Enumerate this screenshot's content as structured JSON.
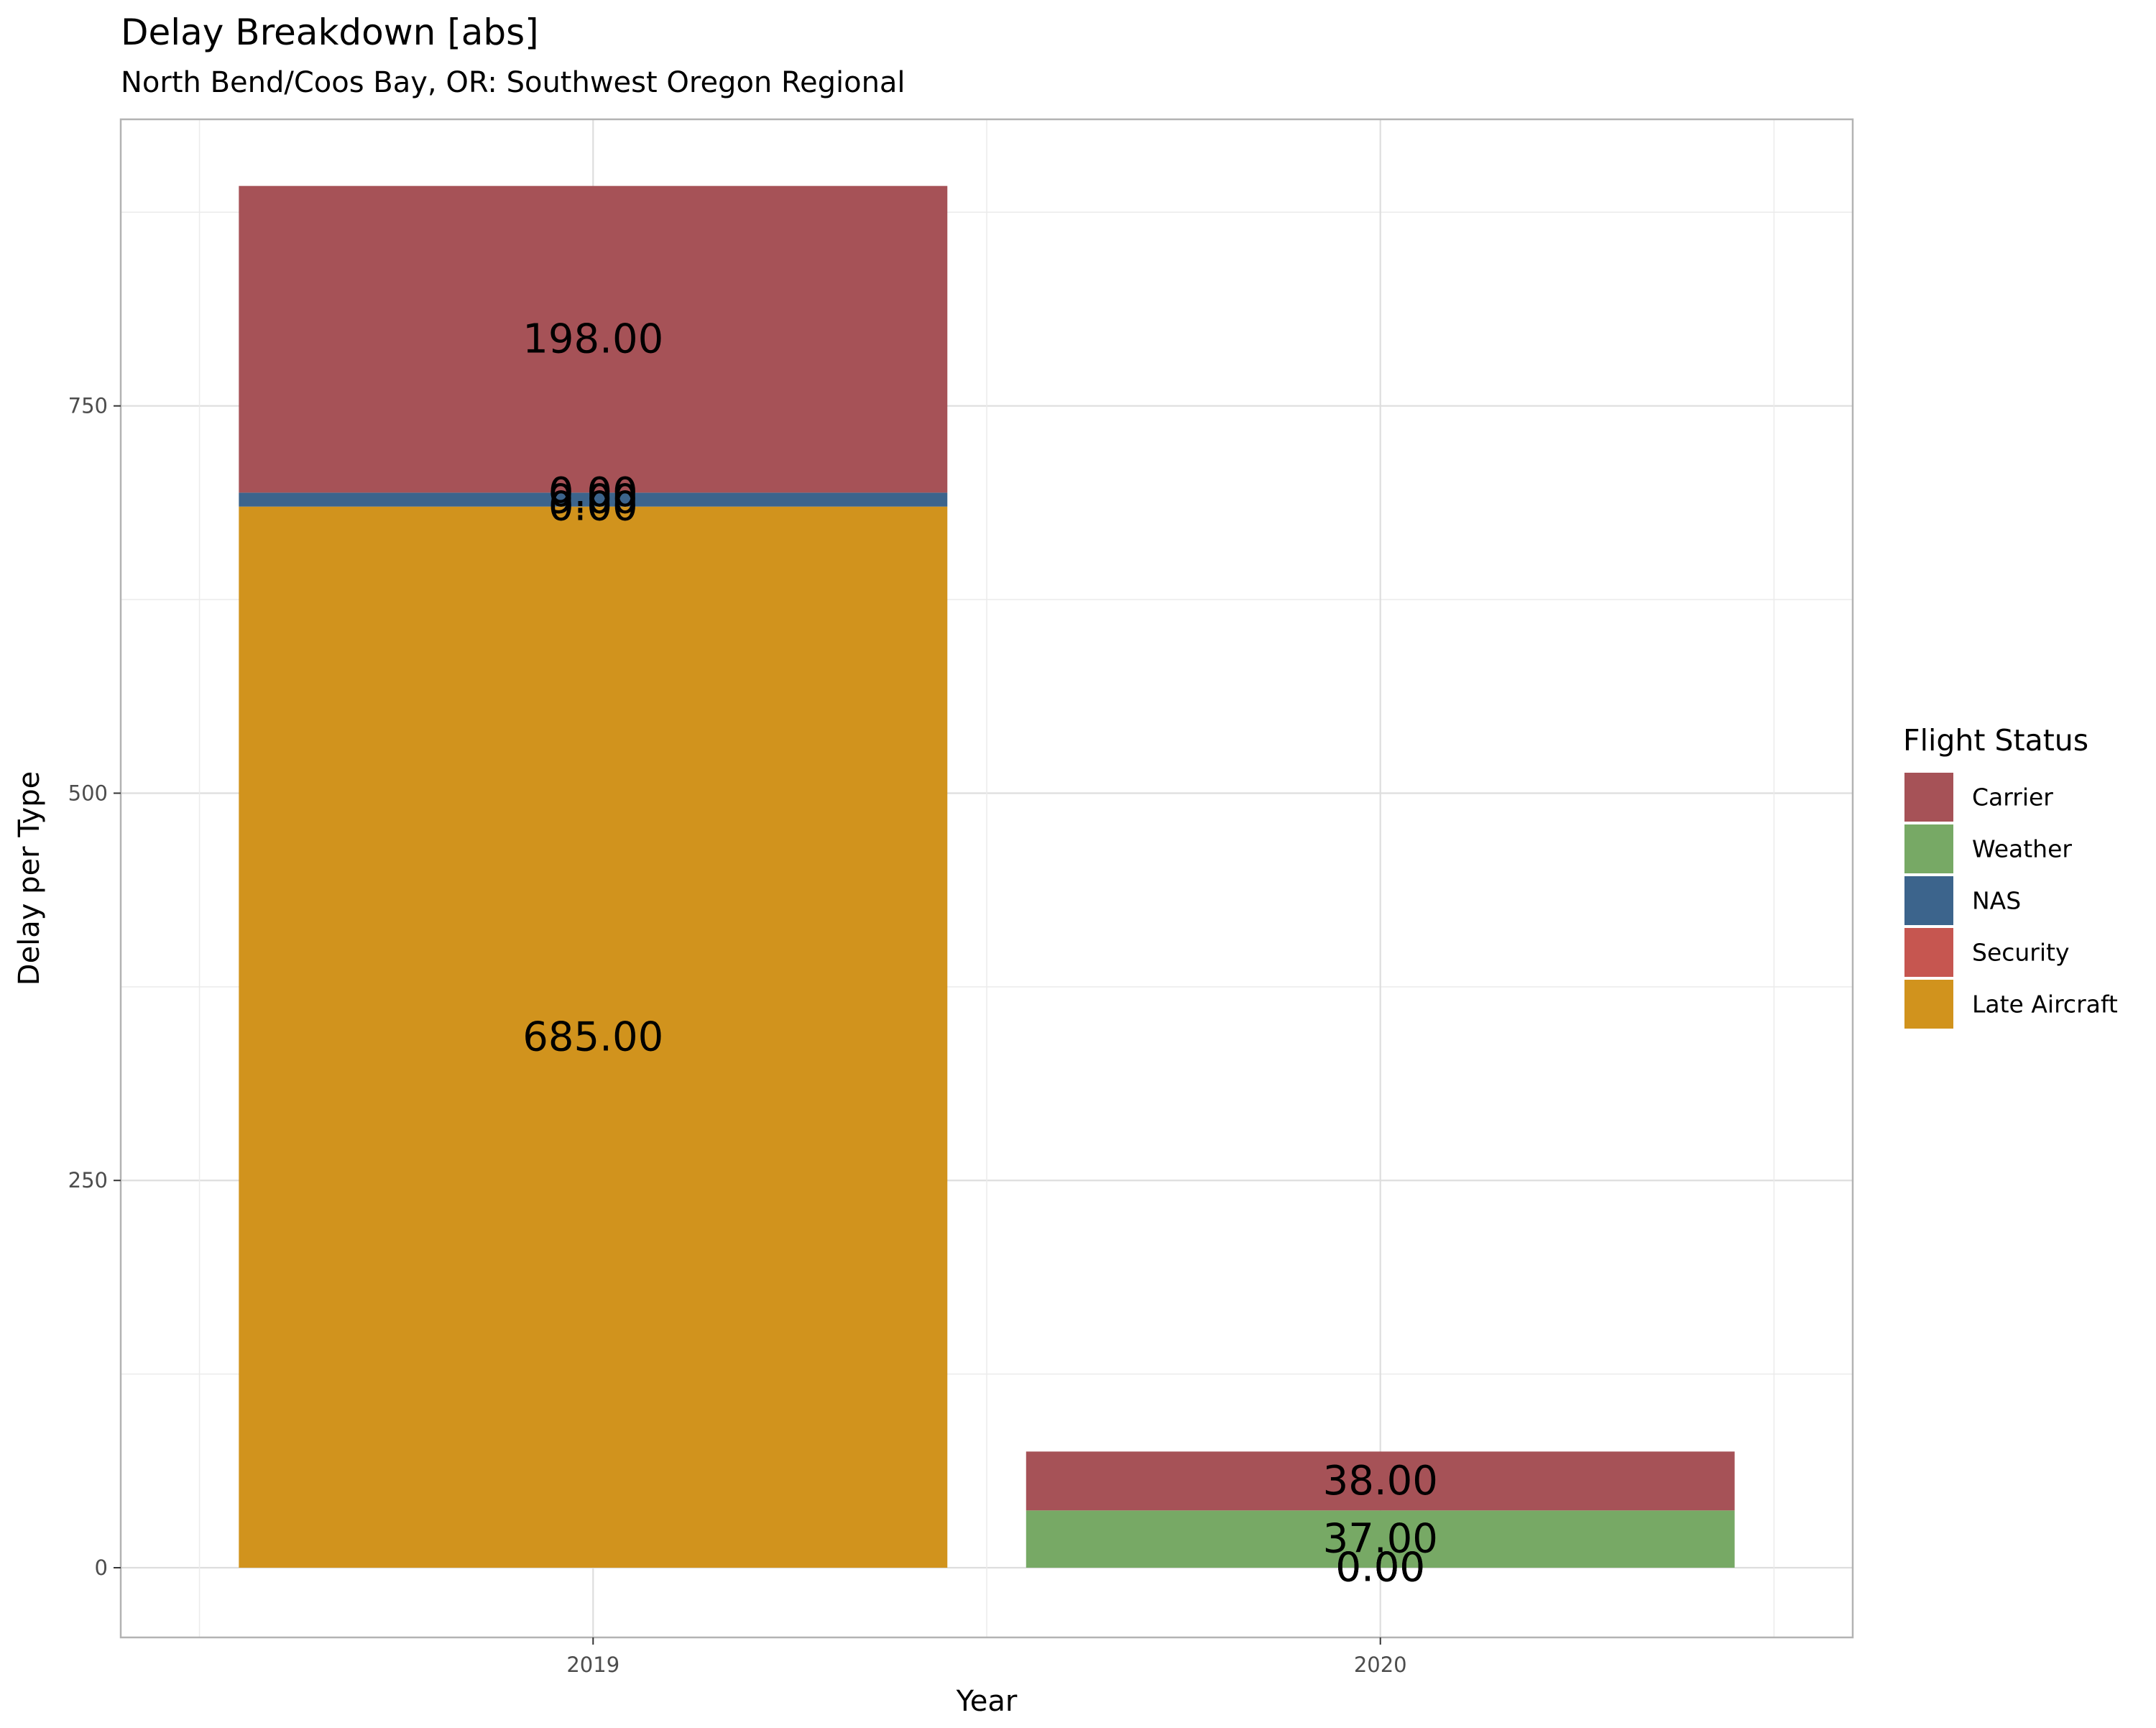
{
  "chart_data": {
    "type": "bar",
    "stacked": true,
    "title": "Delay Breakdown [abs]",
    "subtitle": "North Bend/Coos Bay, OR: Southwest Oregon Regional",
    "xlabel": "Year",
    "ylabel": "Delay per Type",
    "categories": [
      "2019",
      "2020"
    ],
    "y_ticks": [
      0,
      250,
      500,
      750
    ],
    "ylim": [
      -45,
      935
    ],
    "grid": true,
    "legend": {
      "title": "Flight Status",
      "position": "right"
    },
    "series": [
      {
        "name": "Carrier",
        "color": "#A65257",
        "values": [
          198,
          38
        ],
        "labels": [
          "198.00",
          "38.00"
        ]
      },
      {
        "name": "Weather",
        "color": "#77A965",
        "values": [
          0,
          37
        ],
        "labels": [
          "0.00",
          "37.00"
        ]
      },
      {
        "name": "NAS",
        "color": "#3C648C",
        "values": [
          9,
          0
        ],
        "labels": [
          "9.00",
          "0.00"
        ]
      },
      {
        "name": "Security",
        "color": "#C65650",
        "values": [
          0,
          0
        ],
        "labels": [
          "0.00",
          "0.00"
        ]
      },
      {
        "name": "Late Aircraft",
        "color": "#D1931D",
        "values": [
          685,
          0
        ],
        "labels": [
          "685.00",
          "0.00"
        ]
      }
    ]
  }
}
